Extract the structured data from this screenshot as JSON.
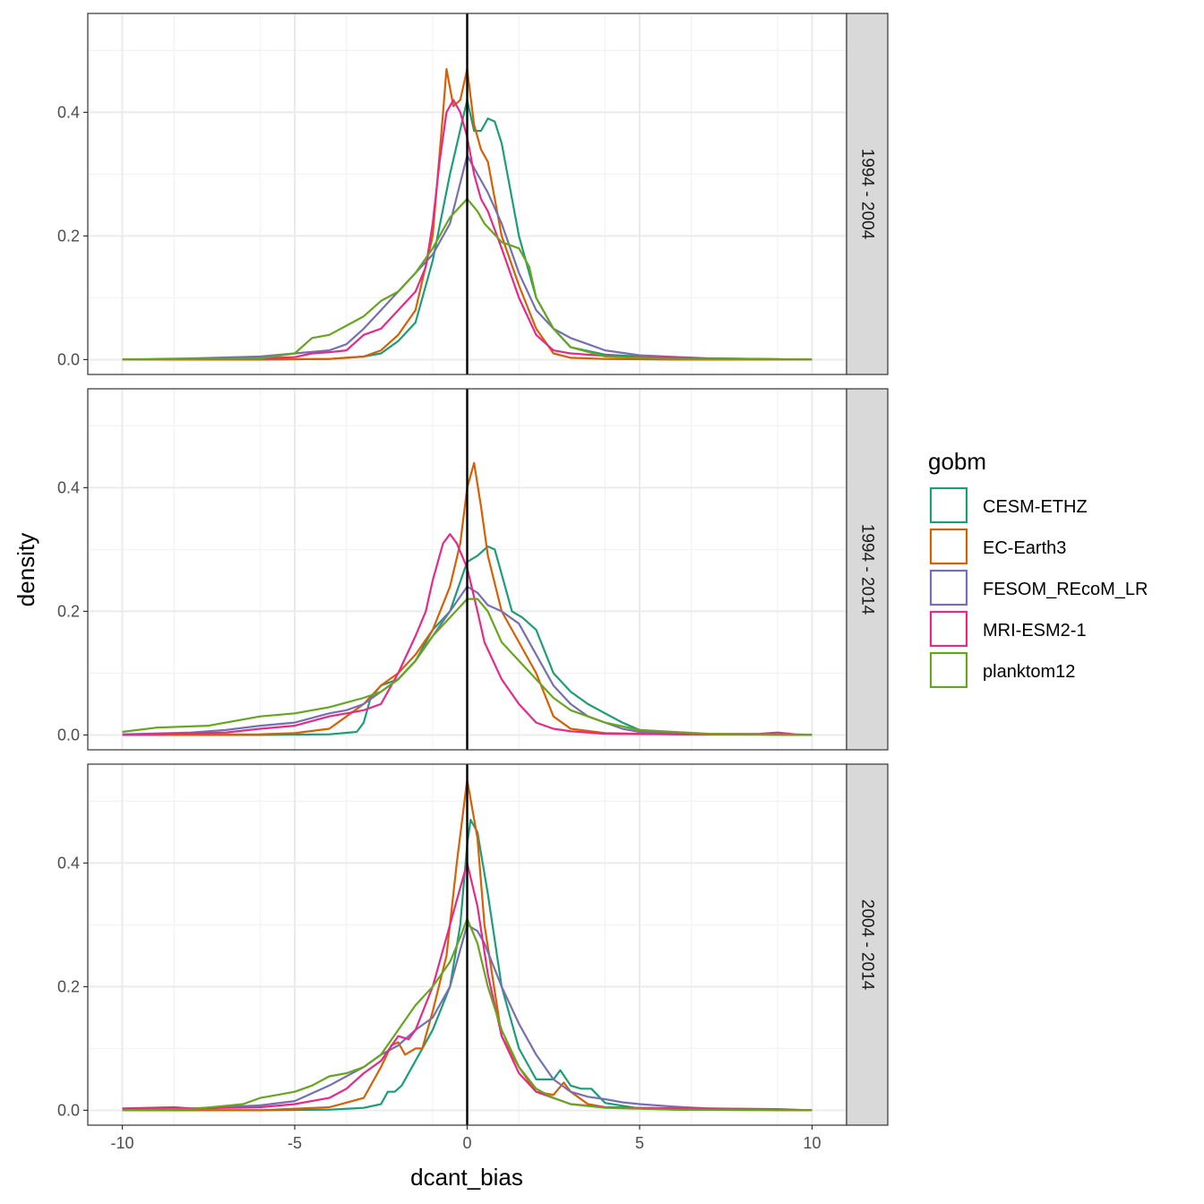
{
  "chart_data": {
    "type": "line",
    "xlabel": "dcant_bias",
    "ylabel": "density",
    "xlim": [
      -11,
      11
    ],
    "ylim": [
      -0.024,
      0.56
    ],
    "x_ticks": [
      -10,
      -5,
      0,
      5,
      10
    ],
    "x_tick_labels": [
      "-10",
      "-5",
      "0",
      "5",
      "10"
    ],
    "y_ticks": [
      0.0,
      0.2,
      0.4
    ],
    "y_tick_labels": [
      "0.0",
      "0.2",
      "0.4"
    ],
    "vline_x": 0,
    "grid": true,
    "legend": {
      "title": "gobm",
      "position": "right",
      "entries": [
        "CESM-ETHZ",
        "EC-Earth3",
        "FESOM_REcoM_LR",
        "MRI-ESM2-1",
        "planktom12"
      ]
    },
    "colors": {
      "CESM-ETHZ": "#1b9e77",
      "EC-Earth3": "#d95f02",
      "FESOM_REcoM_LR": "#7570b3",
      "MRI-ESM2-1": "#e7298a",
      "planktom12": "#66a61e"
    },
    "facets": [
      {
        "label": "1994 - 2004",
        "series": [
          {
            "name": "CESM-ETHZ",
            "x": [
              -10,
              -6,
              -4,
              -3,
              -2.5,
              -2,
              -1.5,
              -1,
              -0.5,
              0,
              0.2,
              0.4,
              0.6,
              0.8,
              1,
              1.2,
              1.5,
              2,
              2.5,
              3,
              4,
              6,
              10
            ],
            "y": [
              0,
              0,
              0.001,
              0.005,
              0.01,
              0.03,
              0.06,
              0.16,
              0.3,
              0.42,
              0.37,
              0.37,
              0.39,
              0.385,
              0.35,
              0.29,
              0.2,
              0.1,
              0.05,
              0.02,
              0.008,
              0.002,
              0
            ]
          },
          {
            "name": "EC-Earth3",
            "x": [
              -10,
              -6,
              -4,
              -3,
              -2.5,
              -2,
              -1.5,
              -1,
              -0.7,
              -0.6,
              -0.4,
              -0.2,
              0,
              0.2,
              0.4,
              0.6,
              0.8,
              1,
              1.5,
              2,
              2.5,
              3,
              4,
              6,
              10
            ],
            "y": [
              0,
              0,
              0.001,
              0.005,
              0.015,
              0.04,
              0.08,
              0.2,
              0.4,
              0.47,
              0.41,
              0.42,
              0.47,
              0.38,
              0.34,
              0.32,
              0.26,
              0.2,
              0.12,
              0.05,
              0.01,
              0.003,
              0.001,
              0,
              0
            ]
          },
          {
            "name": "FESOM_REcoM_LR",
            "x": [
              -10,
              -8,
              -6,
              -5,
              -4,
              -3.5,
              -3,
              -2.5,
              -2,
              -1.5,
              -1,
              -0.5,
              0,
              0.3,
              0.6,
              1,
              1.5,
              2,
              2.5,
              3,
              3.5,
              4,
              5,
              7,
              10
            ],
            "y": [
              0,
              0.002,
              0.005,
              0.01,
              0.015,
              0.025,
              0.05,
              0.08,
              0.11,
              0.14,
              0.17,
              0.22,
              0.33,
              0.3,
              0.27,
              0.22,
              0.14,
              0.08,
              0.05,
              0.035,
              0.025,
              0.015,
              0.007,
              0.002,
              0
            ]
          },
          {
            "name": "MRI-ESM2-1",
            "x": [
              -10,
              -6,
              -5,
              -4.5,
              -4,
              -3.5,
              -3,
              -2.5,
              -2,
              -1.5,
              -1.2,
              -1,
              -0.8,
              -0.6,
              -0.4,
              -0.2,
              0,
              0.2,
              0.4,
              0.6,
              1,
              1.5,
              2,
              2.5,
              3,
              4,
              5,
              7,
              10
            ],
            "y": [
              0,
              0.002,
              0.004,
              0.01,
              0.012,
              0.015,
              0.04,
              0.05,
              0.08,
              0.11,
              0.15,
              0.22,
              0.32,
              0.4,
              0.42,
              0.4,
              0.36,
              0.3,
              0.26,
              0.24,
              0.18,
              0.1,
              0.04,
              0.015,
              0.01,
              0.006,
              0.004,
              0.002,
              0
            ]
          },
          {
            "name": "planktom12",
            "x": [
              -10,
              -6,
              -5,
              -4.5,
              -4,
              -3.5,
              -3,
              -2.5,
              -2,
              -1.5,
              -1,
              -0.5,
              0,
              0.3,
              0.5,
              1,
              1.5,
              1.8,
              2,
              2.5,
              3,
              4,
              6,
              10
            ],
            "y": [
              0,
              0.002,
              0.01,
              0.035,
              0.04,
              0.055,
              0.07,
              0.095,
              0.11,
              0.14,
              0.18,
              0.23,
              0.26,
              0.24,
              0.22,
              0.19,
              0.18,
              0.15,
              0.1,
              0.05,
              0.02,
              0.005,
              0.001,
              0
            ]
          }
        ]
      },
      {
        "label": "1994 - 2014",
        "series": [
          {
            "name": "CESM-ETHZ",
            "x": [
              -10,
              -6,
              -4,
              -3.2,
              -3,
              -2.8,
              -2.5,
              -2,
              -1.5,
              -1,
              -0.5,
              0,
              0.3,
              0.6,
              0.8,
              1,
              1.3,
              1.6,
              2,
              2.5,
              3,
              3.5,
              4,
              4.5,
              5,
              6,
              10
            ],
            "y": [
              0,
              0,
              0.001,
              0.005,
              0.02,
              0.06,
              0.08,
              0.09,
              0.12,
              0.17,
              0.2,
              0.28,
              0.29,
              0.305,
              0.3,
              0.26,
              0.2,
              0.19,
              0.17,
              0.1,
              0.07,
              0.05,
              0.035,
              0.02,
              0.008,
              0.002,
              0
            ]
          },
          {
            "name": "EC-Earth3",
            "x": [
              -10,
              -6,
              -5,
              -4,
              -3.5,
              -3,
              -2.5,
              -2,
              -1.5,
              -1,
              -0.5,
              -0.2,
              0,
              0.2,
              0.4,
              0.6,
              1,
              1.5,
              2,
              2.5,
              3,
              4,
              6,
              10
            ],
            "y": [
              0,
              0.001,
              0.003,
              0.01,
              0.03,
              0.05,
              0.08,
              0.1,
              0.13,
              0.17,
              0.24,
              0.31,
              0.4,
              0.44,
              0.37,
              0.29,
              0.2,
              0.15,
              0.1,
              0.03,
              0.01,
              0.003,
              0.001,
              0
            ]
          },
          {
            "name": "FESOM_REcoM_LR",
            "x": [
              -10,
              -8,
              -7,
              -6,
              -5,
              -4,
              -3.5,
              -3,
              -2.5,
              -2,
              -1.5,
              -1,
              -0.5,
              0,
              0.3,
              0.6,
              1,
              1.5,
              2,
              2.5,
              3,
              3.5,
              4,
              4.5,
              5,
              6,
              10
            ],
            "y": [
              0.001,
              0.004,
              0.008,
              0.015,
              0.02,
              0.035,
              0.04,
              0.05,
              0.07,
              0.09,
              0.12,
              0.16,
              0.2,
              0.24,
              0.23,
              0.21,
              0.2,
              0.18,
              0.13,
              0.08,
              0.05,
              0.03,
              0.02,
              0.01,
              0.005,
              0.002,
              0
            ]
          },
          {
            "name": "MRI-ESM2-1",
            "x": [
              -10,
              -7,
              -6,
              -5,
              -4,
              -3.5,
              -3,
              -2.5,
              -2,
              -1.5,
              -1.2,
              -1,
              -0.7,
              -0.5,
              -0.3,
              0,
              0.3,
              0.5,
              1,
              1.5,
              2,
              2.5,
              3,
              4,
              6,
              8.5,
              9,
              9.5,
              10
            ],
            "y": [
              0,
              0.004,
              0.01,
              0.015,
              0.03,
              0.035,
              0.04,
              0.05,
              0.1,
              0.16,
              0.2,
              0.25,
              0.31,
              0.325,
              0.31,
              0.27,
              0.2,
              0.15,
              0.09,
              0.05,
              0.02,
              0.01,
              0.006,
              0.002,
              0.001,
              0.002,
              0.004,
              0.001,
              0
            ]
          },
          {
            "name": "planktom12",
            "x": [
              -10,
              -9,
              -7.5,
              -7,
              -6,
              -5,
              -4,
              -3,
              -2.5,
              -2,
              -1.5,
              -1,
              -0.5,
              0,
              0.3,
              0.6,
              1,
              1.5,
              2,
              2.5,
              3,
              3.5,
              4,
              5,
              7,
              10
            ],
            "y": [
              0.005,
              0.012,
              0.015,
              0.02,
              0.03,
              0.035,
              0.045,
              0.06,
              0.07,
              0.09,
              0.12,
              0.16,
              0.19,
              0.22,
              0.22,
              0.2,
              0.15,
              0.12,
              0.09,
              0.06,
              0.04,
              0.03,
              0.02,
              0.008,
              0.002,
              0
            ]
          }
        ]
      },
      {
        "label": "2004 - 2014",
        "series": [
          {
            "name": "CESM-ETHZ",
            "x": [
              -10,
              -6,
              -4,
              -3,
              -2.5,
              -2.3,
              -2.1,
              -1.9,
              -1.5,
              -1,
              -0.5,
              -0.2,
              0,
              0.1,
              0.3,
              0.6,
              1,
              1.5,
              2,
              2.5,
              2.7,
              3,
              3.3,
              3.6,
              4,
              5,
              10
            ],
            "y": [
              0,
              0,
              0.001,
              0.004,
              0.01,
              0.03,
              0.03,
              0.04,
              0.08,
              0.13,
              0.2,
              0.3,
              0.43,
              0.47,
              0.45,
              0.35,
              0.2,
              0.1,
              0.05,
              0.05,
              0.065,
              0.04,
              0.035,
              0.035,
              0.012,
              0.003,
              0
            ]
          },
          {
            "name": "EC-Earth3",
            "x": [
              -10,
              -6,
              -4,
              -3,
              -2.5,
              -2.2,
              -2,
              -1.8,
              -1.5,
              -1.3,
              -1,
              -0.6,
              -0.3,
              0,
              0.3,
              0.5,
              1,
              1.5,
              2,
              2.5,
              2.8,
              3,
              3.5,
              4,
              6,
              10
            ],
            "y": [
              0,
              0,
              0.005,
              0.02,
              0.07,
              0.105,
              0.11,
              0.09,
              0.1,
              0.1,
              0.16,
              0.25,
              0.4,
              0.535,
              0.44,
              0.3,
              0.12,
              0.07,
              0.03,
              0.025,
              0.045,
              0.03,
              0.01,
              0.005,
              0.001,
              0
            ]
          },
          {
            "name": "FESOM_REcoM_LR",
            "x": [
              -10,
              -8,
              -6,
              -5,
              -4,
              -3,
              -2.5,
              -2,
              -1.5,
              -1,
              -0.5,
              0,
              0.3,
              0.5,
              1,
              1.5,
              2,
              2.5,
              3,
              3.5,
              4,
              4.5,
              5,
              6,
              7,
              10
            ],
            "y": [
              0,
              0.003,
              0.008,
              0.015,
              0.04,
              0.07,
              0.09,
              0.105,
              0.13,
              0.15,
              0.2,
              0.3,
              0.29,
              0.27,
              0.2,
              0.14,
              0.09,
              0.05,
              0.03,
              0.022,
              0.018,
              0.013,
              0.01,
              0.006,
              0.003,
              0
            ]
          },
          {
            "name": "MRI-ESM2-1",
            "x": [
              -10,
              -8.5,
              -8,
              -7,
              -6,
              -5,
              -4,
              -3.5,
              -3,
              -2.5,
              -2,
              -1.7,
              -1.5,
              -1,
              -0.5,
              -0.3,
              0,
              0.3,
              0.6,
              1,
              1.5,
              2,
              2.5,
              3,
              4,
              5,
              7,
              9,
              10
            ],
            "y": [
              0.003,
              0.005,
              0.003,
              0.004,
              0.005,
              0.01,
              0.02,
              0.035,
              0.06,
              0.08,
              0.12,
              0.115,
              0.13,
              0.2,
              0.3,
              0.34,
              0.4,
              0.33,
              0.22,
              0.12,
              0.06,
              0.03,
              0.02,
              0.01,
              0.005,
              0.004,
              0.003,
              0.002,
              0
            ]
          },
          {
            "name": "planktom12",
            "x": [
              -10,
              -8,
              -6.5,
              -6,
              -5.5,
              -5,
              -4.5,
              -4,
              -3.5,
              -3,
              -2.5,
              -2,
              -1.5,
              -1,
              -0.5,
              -0.2,
              0,
              0.3,
              0.6,
              1,
              1.5,
              2,
              2.5,
              3,
              4,
              6,
              10
            ],
            "y": [
              0,
              0.002,
              0.01,
              0.02,
              0.025,
              0.03,
              0.04,
              0.055,
              0.06,
              0.07,
              0.09,
              0.13,
              0.17,
              0.2,
              0.24,
              0.28,
              0.31,
              0.27,
              0.2,
              0.13,
              0.07,
              0.035,
              0.02,
              0.01,
              0.004,
              0.001,
              0
            ]
          }
        ]
      }
    ]
  }
}
